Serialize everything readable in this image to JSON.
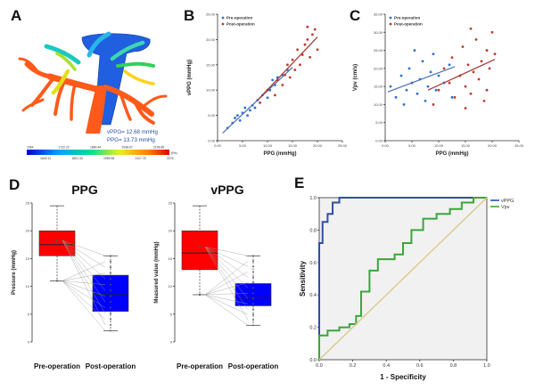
{
  "panels": {
    "A": "A",
    "B": "B",
    "C": "C",
    "D": "D",
    "E": "E"
  },
  "panelA": {
    "annotation_vppg": "vPPG= 12.68 mmHg",
    "annotation_ppg": "PPG= 13.73 mmHg",
    "colorbar_unit": "(Pa)",
    "colorbar_ticks_top": [
      "1564",
      "1722.22",
      "1880.44",
      "2038.67",
      "2196.89"
    ],
    "colorbar_ticks_bottom": [
      "1643.11",
      "1801.33",
      "1959.56",
      "2117.78",
      "2276"
    ],
    "colors": {
      "portal": "#ff5a1a",
      "vena": "#1f5fe0"
    }
  },
  "chart_data": [
    {
      "id": "B",
      "type": "scatter",
      "xlabel": "PPG (mmHg)",
      "ylabel": "vPPG (mmHg)",
      "xlim": [
        0,
        25
      ],
      "ylim": [
        0,
        25
      ],
      "xticks": [
        "0.00",
        "5.00",
        "10.00",
        "15.00",
        "20.00",
        "25.00"
      ],
      "yticks": [
        "0.00",
        "5.00",
        "10.00",
        "15.00",
        "20.00",
        "25.00"
      ],
      "grid": false,
      "legend_position": "top-left",
      "series": [
        {
          "name": "Pre-operation",
          "color": "#2e6fdb",
          "points": [
            [
              2,
              2.5
            ],
            [
              3,
              3.5
            ],
            [
              3.5,
              4.5
            ],
            [
              4,
              5
            ],
            [
              4.5,
              4
            ],
            [
              5,
              5.5
            ],
            [
              5.5,
              6.5
            ],
            [
              6,
              5
            ],
            [
              6.5,
              6
            ],
            [
              7,
              7
            ],
            [
              7.5,
              6.5
            ],
            [
              8,
              8
            ],
            [
              9,
              9
            ],
            [
              10,
              8.5
            ],
            [
              10.5,
              10
            ],
            [
              11,
              12
            ],
            [
              11.5,
              11
            ],
            [
              12,
              12.5
            ],
            [
              13,
              13
            ],
            [
              14,
              14
            ]
          ],
          "fit": [
            [
              1,
              1.5
            ],
            [
              15,
              14.5
            ]
          ]
        },
        {
          "name": "Post-operation",
          "color": "#c0392b",
          "points": [
            [
              8.5,
              7.5
            ],
            [
              10,
              10
            ],
            [
              11.5,
              9
            ],
            [
              12,
              12
            ],
            [
              13,
              11
            ],
            [
              13.5,
              13
            ],
            [
              14,
              15
            ],
            [
              14.5,
              12.5
            ],
            [
              15,
              16
            ],
            [
              15.5,
              14
            ],
            [
              16,
              18
            ],
            [
              16.5,
              15
            ],
            [
              17,
              17
            ],
            [
              17.5,
              19
            ],
            [
              18,
              20
            ],
            [
              18.5,
              16.5
            ],
            [
              19,
              21
            ],
            [
              19.5,
              22
            ],
            [
              20,
              18
            ],
            [
              18,
              22.5
            ]
          ],
          "fit": [
            [
              8,
              8
            ],
            [
              20,
              20.5
            ]
          ]
        }
      ]
    },
    {
      "id": "C",
      "type": "scatter",
      "xlabel": "PPG (mmHg)",
      "ylabel": "Vpv (cm/s)",
      "xlim": [
        0,
        25
      ],
      "ylim": [
        0,
        35
      ],
      "xticks": [
        "0.00",
        "5.00",
        "10.00",
        "15.00",
        "20.00",
        "25.00"
      ],
      "yticks": [
        "0.00",
        "5.00",
        "10.00",
        "15.00",
        "20.00",
        "25.00",
        "30.00",
        "35.00"
      ],
      "grid": false,
      "legend_position": "top-left",
      "series": [
        {
          "name": "Pre-operation",
          "color": "#2e6fdb",
          "points": [
            [
              1,
              15
            ],
            [
              2,
              12
            ],
            [
              3,
              18
            ],
            [
              3.5,
              10
            ],
            [
              4,
              14
            ],
            [
              4.5,
              20
            ],
            [
              5,
              16
            ],
            [
              5.5,
              25
            ],
            [
              6,
              13
            ],
            [
              6.5,
              17
            ],
            [
              7,
              22
            ],
            [
              7.5,
              11
            ],
            [
              8,
              15
            ],
            [
              8.5,
              19
            ],
            [
              9,
              24
            ],
            [
              9.5,
              14
            ],
            [
              10,
              18
            ],
            [
              11,
              16
            ],
            [
              12,
              21
            ],
            [
              12.5,
              12
            ]
          ],
          "fit": [
            [
              0.5,
              13.5
            ],
            [
              13,
              20.5
            ]
          ]
        },
        {
          "name": "Post-operation",
          "color": "#c0392b",
          "points": [
            [
              9,
              10
            ],
            [
              10,
              14
            ],
            [
              11,
              20
            ],
            [
              12,
              16
            ],
            [
              12.5,
              23
            ],
            [
              13,
              12
            ],
            [
              14,
              18
            ],
            [
              14.5,
              26
            ],
            [
              15,
              15
            ],
            [
              15.5,
              21
            ],
            [
              16,
              13
            ],
            [
              16.5,
              19
            ],
            [
              17,
              28
            ],
            [
              17.5,
              17
            ],
            [
              18,
              22
            ],
            [
              18.5,
              11
            ],
            [
              19,
              25
            ],
            [
              19.5,
              20
            ],
            [
              20,
              30
            ],
            [
              20.5,
              24
            ],
            [
              16,
              31
            ],
            [
              15,
              9
            ],
            [
              19,
              14
            ]
          ],
          "fit": [
            [
              8,
              14
            ],
            [
              20.5,
              22.5
            ]
          ]
        }
      ]
    },
    {
      "id": "D1",
      "type": "box",
      "title": "PPG",
      "ylabel": "Pressure (mmHg)",
      "categories": [
        "Pre-operation",
        "Post-operation"
      ],
      "ylim": [
        0,
        25
      ],
      "yticks": [
        "0",
        "5",
        "10",
        "15",
        "20",
        "25"
      ],
      "boxes": [
        {
          "min": 11,
          "q1": 15.5,
          "median": 17.5,
          "q3": 20,
          "max": 24.5,
          "color": "#ff0000"
        },
        {
          "min": 2,
          "q1": 5.5,
          "median": 8.5,
          "q3": 12,
          "max": 15.5,
          "color": "#0000ff"
        }
      ]
    },
    {
      "id": "D2",
      "type": "box",
      "title": "vPPG",
      "ylabel": "Measured value (mmHg)",
      "categories": [
        "Pre-operation",
        "Post-operation"
      ],
      "ylim": [
        0,
        25
      ],
      "yticks": [
        "0",
        "5",
        "10",
        "15",
        "20",
        "25"
      ],
      "boxes": [
        {
          "min": 8.5,
          "q1": 13,
          "median": 16,
          "q3": 20,
          "max": 24.5,
          "color": "#ff0000"
        },
        {
          "min": 3,
          "q1": 6.5,
          "median": 8,
          "q3": 10.5,
          "max": 15.5,
          "color": "#0000ff"
        }
      ]
    },
    {
      "id": "E",
      "type": "line",
      "xlabel": "1 - Specificity",
      "ylabel": "Sensitivity",
      "xlim": [
        0,
        1
      ],
      "ylim": [
        0,
        1
      ],
      "xticks": [
        "0.0",
        "0.2",
        "0.4",
        "0.6",
        "0.8",
        "1.0"
      ],
      "yticks": [
        "0.0",
        "0.2",
        "0.4",
        "0.6",
        "0.8",
        "1.0"
      ],
      "legend_position": "top-right",
      "series": [
        {
          "name": "vPPG",
          "color": "#2e4fa8",
          "points": [
            [
              0,
              0
            ],
            [
              0,
              0.72
            ],
            [
              0.02,
              0.72
            ],
            [
              0.02,
              0.85
            ],
            [
              0.05,
              0.85
            ],
            [
              0.05,
              0.9
            ],
            [
              0.08,
              0.9
            ],
            [
              0.08,
              0.97
            ],
            [
              0.12,
              0.97
            ],
            [
              0.12,
              1
            ],
            [
              1,
              1
            ]
          ]
        },
        {
          "name": "Vpv",
          "color": "#3aa63a",
          "points": [
            [
              0,
              0
            ],
            [
              0,
              0.15
            ],
            [
              0.05,
              0.15
            ],
            [
              0.05,
              0.18
            ],
            [
              0.12,
              0.18
            ],
            [
              0.12,
              0.2
            ],
            [
              0.18,
              0.2
            ],
            [
              0.18,
              0.22
            ],
            [
              0.22,
              0.22
            ],
            [
              0.22,
              0.27
            ],
            [
              0.25,
              0.27
            ],
            [
              0.25,
              0.42
            ],
            [
              0.3,
              0.42
            ],
            [
              0.3,
              0.55
            ],
            [
              0.35,
              0.55
            ],
            [
              0.35,
              0.62
            ],
            [
              0.45,
              0.62
            ],
            [
              0.45,
              0.65
            ],
            [
              0.5,
              0.65
            ],
            [
              0.5,
              0.72
            ],
            [
              0.55,
              0.72
            ],
            [
              0.55,
              0.8
            ],
            [
              0.62,
              0.8
            ],
            [
              0.62,
              0.87
            ],
            [
              0.7,
              0.87
            ],
            [
              0.7,
              0.9
            ],
            [
              0.78,
              0.9
            ],
            [
              0.78,
              0.93
            ],
            [
              0.85,
              0.93
            ],
            [
              0.85,
              0.97
            ],
            [
              0.92,
              0.97
            ],
            [
              0.92,
              1
            ],
            [
              1,
              1
            ]
          ]
        },
        {
          "name": "",
          "color": "#d9c98a",
          "points": [
            [
              0,
              0
            ],
            [
              1,
              1
            ]
          ]
        }
      ]
    }
  ]
}
